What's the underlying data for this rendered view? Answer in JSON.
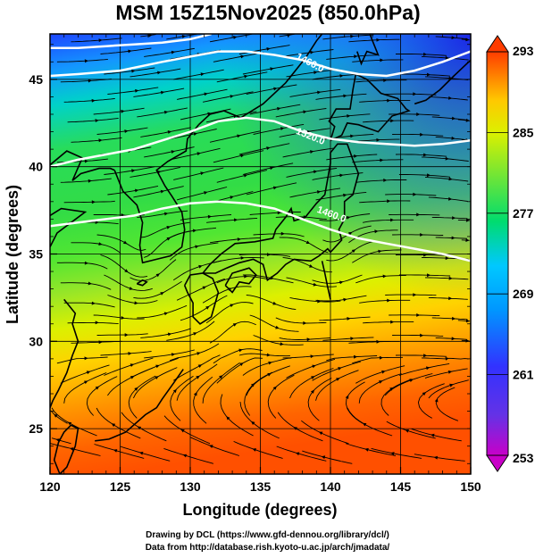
{
  "header": {
    "title": "MSM 15Z15Nov2025 (850.0hPa)"
  },
  "axes": {
    "xlabel": "Longitude (degrees)",
    "ylabel": "Latitude  (degrees)",
    "xlim": [
      120,
      150
    ],
    "ylim": [
      22.4,
      47.6
    ],
    "xticks": [
      "120",
      "125",
      "130",
      "135",
      "140",
      "145",
      "150"
    ],
    "yticks": [
      "25",
      "30",
      "35",
      "40",
      "45"
    ]
  },
  "colorbar": {
    "ticks": [
      "293",
      "285",
      "277",
      "269",
      "261",
      "253"
    ],
    "range": [
      253,
      293
    ],
    "colors": [
      "#c800c8",
      "#3232ff",
      "#00c8ff",
      "#00dc6e",
      "#b4e632",
      "#fff000",
      "#ff9600",
      "#ff3c00",
      "#ff0000"
    ]
  },
  "contours": {
    "color": "#ffffff",
    "labels": [
      "1460.0",
      "1520.0",
      "1460.0"
    ]
  },
  "footer": {
    "line1": "Drawing by DCL (https://www.gfd-dennou.org/library/dcl/)",
    "line2": "Data from http://database.rish.kyoto-u.ac.jp/arch/jmadata/"
  }
}
